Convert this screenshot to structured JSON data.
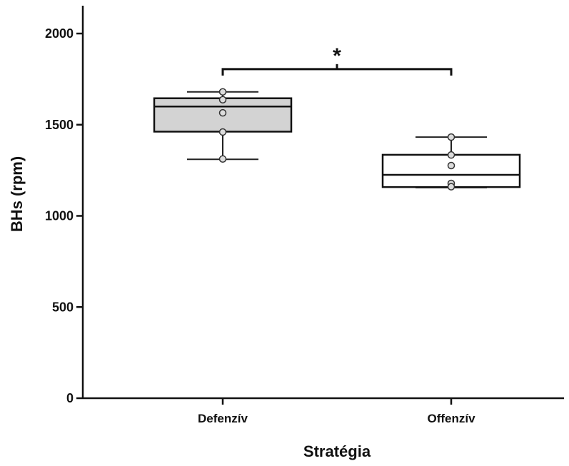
{
  "chart_data": {
    "type": "boxplot",
    "xlabel": "Stratégia",
    "ylabel": "BHs (rpm)",
    "ylim": [
      0,
      2150
    ],
    "yticks": [
      0,
      500,
      1000,
      1500,
      2000
    ],
    "categories": [
      "Defenzív",
      "Offenzív"
    ],
    "boxes": [
      {
        "category": "Defenzív",
        "fill": "#d3d3d3",
        "whisker_low": 1310,
        "q1": 1462,
        "median": 1600,
        "q3": 1645,
        "whisker_high": 1680,
        "points": [
          1680,
          1637,
          1565,
          1460,
          1312
        ]
      },
      {
        "category": "Offenzív",
        "fill": "#ffffff",
        "whisker_low": 1155,
        "q1": 1158,
        "median": 1225,
        "q3": 1335,
        "whisker_high": 1432,
        "points": [
          1432,
          1334,
          1276,
          1178,
          1160
        ]
      }
    ],
    "significance": {
      "from": "Defenzív",
      "to": "Offenzív",
      "label": "*",
      "level": 1805
    },
    "grid": false,
    "legend": "none"
  }
}
